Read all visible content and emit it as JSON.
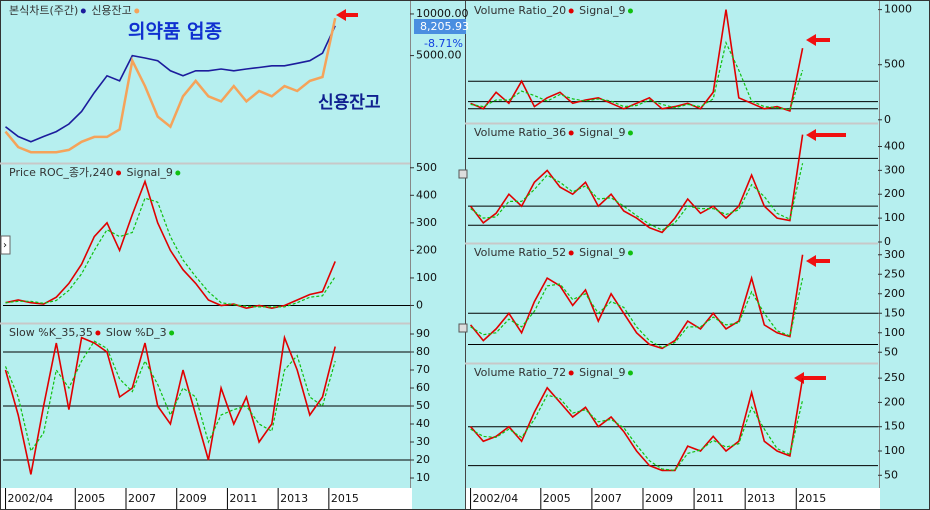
{
  "x_axis": {
    "x": [
      2002.25,
      2002.75,
      2003.25,
      2003.75,
      2004.25,
      2004.75,
      2005.25,
      2005.75,
      2006.25,
      2006.75,
      2007.25,
      2007.75,
      2008.25,
      2008.75,
      2009.25,
      2009.75,
      2010.25,
      2010.75,
      2011.25,
      2011.75,
      2012.25,
      2012.75,
      2013.25,
      2013.75,
      2014.25,
      2014.75,
      2015.25
    ],
    "xlim": [
      2002.15,
      2018.2
    ],
    "xticks": [
      {
        "value": 2002.25,
        "label": "2002/04"
      },
      2005,
      2007,
      2009,
      2011,
      2013,
      2015
    ]
  },
  "chart_data": [
    {
      "type": "line",
      "log": true,
      "ylim": [
        850,
        12000
      ],
      "yticks": [
        {
          "value": 10000,
          "label": "10000.00"
        },
        {
          "value": 5000,
          "label": "5000.00"
        }
      ],
      "annotations": [
        "의약품 업종",
        "신용잔고"
      ],
      "last_price_label": "8,205.93",
      "change_label": "-8.71%",
      "series": [
        {
          "name": "본식차트(주간)",
          "color": "#1c1c9c",
          "values": [
            1530,
            1300,
            1190,
            1300,
            1410,
            1600,
            1970,
            2700,
            3570,
            3280,
            5000,
            4800,
            4590,
            3880,
            3570,
            3880,
            3880,
            4000,
            3880,
            4000,
            4100,
            4220,
            4220,
            4400,
            4590,
            5200,
            8206
          ]
        },
        {
          "name": "신용잔고",
          "color": "#f5a35a",
          "values": [
            1410,
            1090,
            1000,
            1000,
            1000,
            1040,
            1190,
            1290,
            1290,
            1460,
            4590,
            3010,
            1810,
            1530,
            2540,
            3280,
            2540,
            2330,
            3010,
            2330,
            2770,
            2540,
            3010,
            2770,
            3280,
            3500,
            9340
          ]
        }
      ]
    },
    {
      "type": "line",
      "ylim": [
        -60,
        510
      ],
      "yticks": [
        0,
        100,
        200,
        300,
        400,
        500
      ],
      "hlines": [
        0
      ],
      "series": [
        {
          "name": "Price ROC_종가,240",
          "color": "#e00000",
          "values": [
            10,
            20,
            10,
            5,
            30,
            80,
            150,
            250,
            300,
            200,
            330,
            450,
            300,
            200,
            130,
            80,
            20,
            0,
            5,
            -10,
            0,
            -10,
            0,
            20,
            40,
            50,
            160
          ]
        },
        {
          "name": "Signal_9",
          "color": "#10c010",
          "values": [
            10,
            15,
            15,
            8,
            18,
            55,
            115,
            200,
            275,
            250,
            265,
            390,
            375,
            250,
            165,
            105,
            50,
            10,
            3,
            -3,
            -5,
            -5,
            -5,
            10,
            30,
            35,
            105
          ]
        }
      ]
    },
    {
      "type": "line",
      "ylim": [
        5,
        95
      ],
      "yticks": [
        10,
        20,
        30,
        40,
        50,
        60,
        70,
        80,
        90
      ],
      "hlines": [
        20,
        50,
        80
      ],
      "series": [
        {
          "name": "Slow %K_35,35",
          "color": "#e00000",
          "values": [
            70,
            45,
            12,
            50,
            85,
            48,
            88,
            85,
            80,
            55,
            60,
            85,
            50,
            40,
            70,
            45,
            20,
            60,
            40,
            55,
            30,
            40,
            88,
            70,
            45,
            55,
            83
          ]
        },
        {
          "name": "Slow %D_3",
          "color": "#10c010",
          "values": [
            72,
            55,
            25,
            35,
            70,
            60,
            75,
            86,
            82,
            65,
            58,
            75,
            62,
            45,
            60,
            55,
            30,
            45,
            48,
            50,
            40,
            36,
            70,
            78,
            55,
            50,
            75
          ]
        }
      ]
    },
    {
      "type": "line",
      "ylim": [
        -20,
        1060
      ],
      "yticks": [
        0,
        500,
        1000
      ],
      "hlines": [
        100,
        165,
        350
      ],
      "series": [
        {
          "name": "Volume Ratio_20",
          "color": "#e00000",
          "values": [
            150,
            100,
            250,
            150,
            350,
            120,
            200,
            250,
            150,
            180,
            200,
            150,
            100,
            150,
            200,
            100,
            120,
            150,
            100,
            250,
            1000,
            200,
            150,
            100,
            120,
            80,
            650
          ]
        },
        {
          "name": "Signal_9",
          "color": "#10c010",
          "values": [
            140,
            120,
            180,
            180,
            260,
            220,
            170,
            230,
            190,
            170,
            190,
            170,
            120,
            130,
            180,
            140,
            110,
            140,
            120,
            190,
            700,
            450,
            170,
            120,
            110,
            90,
            450
          ]
        }
      ]
    },
    {
      "type": "line",
      "ylim": [
        0,
        490
      ],
      "yticks": [
        0,
        100,
        200,
        300,
        400
      ],
      "hlines": [
        70,
        150,
        350
      ],
      "series": [
        {
          "name": "Volume Ratio_36",
          "color": "#e00000",
          "values": [
            150,
            80,
            120,
            200,
            150,
            250,
            300,
            230,
            200,
            250,
            150,
            200,
            130,
            100,
            60,
            40,
            100,
            180,
            120,
            150,
            100,
            150,
            280,
            150,
            100,
            90,
            450
          ]
        },
        {
          "name": "Signal_9",
          "color": "#10c010",
          "values": [
            140,
            100,
            105,
            170,
            170,
            220,
            280,
            250,
            210,
            235,
            180,
            185,
            150,
            110,
            75,
            50,
            80,
            150,
            140,
            140,
            115,
            135,
            240,
            190,
            120,
            95,
            330
          ]
        }
      ]
    },
    {
      "type": "line",
      "ylim": [
        25,
        325
      ],
      "yticks": [
        50,
        100,
        150,
        200,
        250,
        300
      ],
      "hlines": [
        70,
        150
      ],
      "series": [
        {
          "name": "Volume Ratio_52",
          "color": "#e00000",
          "values": [
            120,
            80,
            110,
            150,
            100,
            180,
            240,
            220,
            170,
            210,
            130,
            200,
            150,
            100,
            70,
            60,
            80,
            130,
            110,
            150,
            110,
            130,
            240,
            120,
            100,
            90,
            300
          ]
        },
        {
          "name": "Signal_9",
          "color": "#10c010",
          "values": [
            115,
            95,
            100,
            135,
            115,
            155,
            220,
            225,
            185,
            200,
            150,
            180,
            165,
            115,
            80,
            62,
            75,
            115,
            115,
            140,
            120,
            125,
            205,
            150,
            105,
            92,
            240
          ]
        }
      ]
    },
    {
      "type": "line",
      "ylim": [
        30,
        277
      ],
      "yticks": [
        50,
        100,
        150,
        200,
        250
      ],
      "hlines": [
        70,
        150
      ],
      "series": [
        {
          "name": "Volume Ratio_72",
          "color": "#e00000",
          "values": [
            150,
            120,
            130,
            150,
            120,
            180,
            230,
            200,
            170,
            190,
            150,
            170,
            140,
            100,
            70,
            60,
            60,
            110,
            100,
            130,
            100,
            120,
            220,
            120,
            100,
            90,
            250
          ]
        },
        {
          "name": "Signal_9",
          "color": "#10c010",
          "values": [
            145,
            130,
            128,
            145,
            128,
            165,
            215,
            208,
            178,
            185,
            160,
            165,
            148,
            112,
            80,
            63,
            60,
            95,
            102,
            122,
            108,
            115,
            190,
            145,
            105,
            93,
            205
          ]
        }
      ]
    }
  ]
}
